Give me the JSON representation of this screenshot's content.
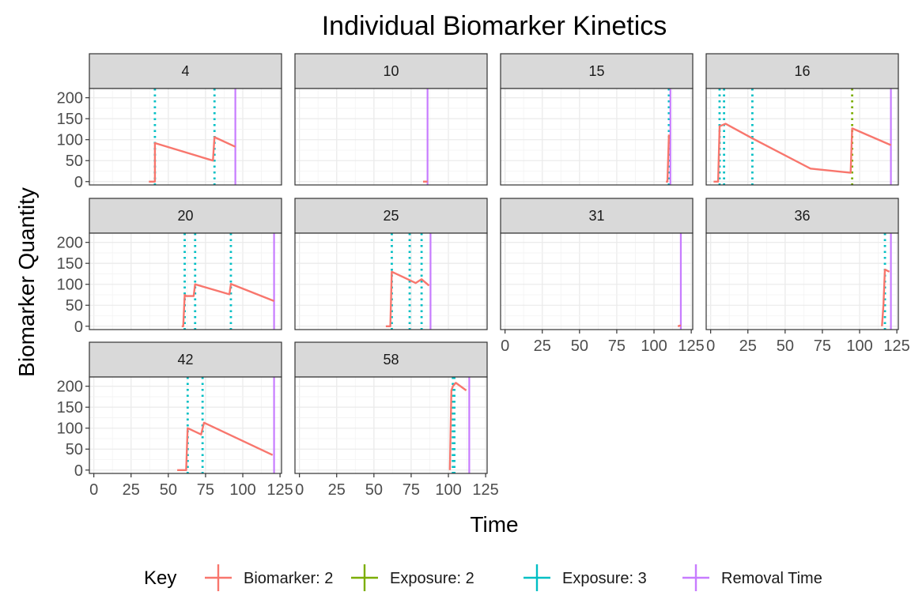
{
  "chart_data": {
    "type": "line",
    "title": "Individual Biomarker Kinetics",
    "xlabel": "Time",
    "ylabel": "Biomarker Quantity",
    "xlim": [
      -3,
      126
    ],
    "ylim": [
      -8,
      222
    ],
    "x_ticks": [
      0,
      25,
      50,
      75,
      100,
      125
    ],
    "y_ticks": [
      0,
      50,
      100,
      150,
      200
    ],
    "grid": true,
    "facet_layout": {
      "columns": 4,
      "rows": 3
    },
    "legend": {
      "title": "Key",
      "position": "bottom",
      "entries": [
        {
          "label": "Biomarker: 2",
          "color": "#F8766D"
        },
        {
          "label": "Exposure: 2",
          "color": "#7CAE00"
        },
        {
          "label": "Exposure: 3",
          "color": "#00BFC4"
        },
        {
          "label": "Removal Time",
          "color": "#C77CFF"
        }
      ]
    },
    "panels": [
      {
        "label": "4",
        "biomarker": [
          [
            37,
            0
          ],
          [
            41,
            0
          ],
          [
            41,
            92
          ],
          [
            80,
            50
          ],
          [
            81,
            106
          ],
          [
            95,
            83
          ]
        ],
        "exposure2": [],
        "exposure3": [
          41,
          81
        ],
        "removal": 95
      },
      {
        "label": "10",
        "biomarker": [
          [
            83,
            0
          ],
          [
            86,
            0
          ]
        ],
        "exposure2": [],
        "exposure3": [],
        "removal": 86
      },
      {
        "label": "15",
        "biomarker": [
          [
            108,
            0
          ],
          [
            109,
            0
          ],
          [
            110,
            112
          ]
        ],
        "exposure2": [],
        "exposure3": [
          110
        ],
        "removal": 111
      },
      {
        "label": "16",
        "biomarker": [
          [
            2,
            0
          ],
          [
            5,
            0
          ],
          [
            6,
            132
          ],
          [
            10,
            138
          ],
          [
            28,
            103
          ],
          [
            67,
            31
          ],
          [
            94,
            21
          ],
          [
            95,
            127
          ],
          [
            121,
            87
          ]
        ],
        "exposure2": [
          95
        ],
        "exposure3": [
          6,
          9,
          28
        ],
        "removal": 121
      },
      {
        "label": "20",
        "biomarker": [
          [
            59,
            0
          ],
          [
            60,
            0
          ],
          [
            61,
            75
          ],
          [
            62,
            72
          ],
          [
            67,
            72
          ],
          [
            68,
            100
          ],
          [
            91,
            76
          ],
          [
            92,
            101
          ],
          [
            121,
            60
          ]
        ],
        "exposure2": [],
        "exposure3": [
          61,
          68,
          92
        ],
        "removal": 121
      },
      {
        "label": "25",
        "biomarker": [
          [
            58,
            0
          ],
          [
            61,
            0
          ],
          [
            62,
            130
          ],
          [
            74,
            110
          ],
          [
            78,
            103
          ],
          [
            82,
            112
          ],
          [
            87,
            97
          ]
        ],
        "exposure2": [],
        "exposure3": [
          62,
          74,
          82
        ],
        "removal": 88
      },
      {
        "label": "31",
        "biomarker": [
          [
            116,
            0
          ],
          [
            118,
            2
          ]
        ],
        "exposure2": [],
        "exposure3": [],
        "removal": 118
      },
      {
        "label": "36",
        "biomarker": [
          [
            115,
            0
          ],
          [
            116,
            52
          ],
          [
            117,
            135
          ],
          [
            120,
            130
          ]
        ],
        "exposure2": [],
        "exposure3": [
          117
        ],
        "removal": 121
      },
      {
        "label": "42",
        "biomarker": [
          [
            56,
            0
          ],
          [
            62,
            0
          ],
          [
            63,
            100
          ],
          [
            72,
            85
          ],
          [
            74,
            113
          ],
          [
            120,
            36
          ]
        ],
        "exposure2": [],
        "exposure3": [
          63,
          73
        ],
        "removal": 121
      },
      {
        "label": "58",
        "biomarker": [
          [
            101,
            0
          ],
          [
            102,
            190
          ],
          [
            103,
            200
          ],
          [
            105,
            208
          ],
          [
            112,
            190
          ]
        ],
        "exposure2": [],
        "exposure3": [
          103,
          104
        ],
        "removal": 114
      }
    ]
  }
}
